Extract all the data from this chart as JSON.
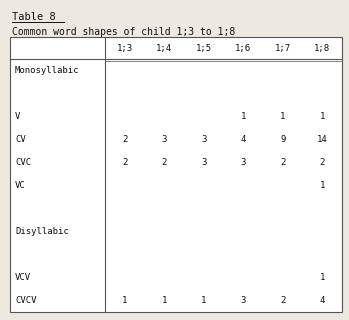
{
  "title": "Table 8",
  "subtitle": "Common word shapes of child 1;3 to 1;8",
  "columns": [
    "1;3",
    "1;4",
    "1;5",
    "1;6",
    "1;7",
    "1;8"
  ],
  "rows": [
    {
      "label": "Monosyllabic",
      "values": [
        "",
        "",
        "",
        "",
        "",
        ""
      ],
      "is_section": true
    },
    {
      "label": "",
      "values": [
        "",
        "",
        "",
        "",
        "",
        ""
      ],
      "is_section": false
    },
    {
      "label": "V",
      "values": [
        "",
        "",
        "",
        "1",
        "1",
        "1"
      ],
      "is_section": false
    },
    {
      "label": "CV",
      "values": [
        "2",
        "3",
        "3",
        "4",
        "9",
        "14"
      ],
      "is_section": false
    },
    {
      "label": "CVC",
      "values": [
        "2",
        "2",
        "3",
        "3",
        "2",
        "2"
      ],
      "is_section": false
    },
    {
      "label": "VC",
      "values": [
        "",
        "",
        "",
        "",
        "",
        "1"
      ],
      "is_section": false
    },
    {
      "label": "",
      "values": [
        "",
        "",
        "",
        "",
        "",
        ""
      ],
      "is_section": false
    },
    {
      "label": "Disyllabic",
      "values": [
        "",
        "",
        "",
        "",
        "",
        ""
      ],
      "is_section": true
    },
    {
      "label": "",
      "values": [
        "",
        "",
        "",
        "",
        "",
        ""
      ],
      "is_section": false
    },
    {
      "label": "VCV",
      "values": [
        "",
        "",
        "",
        "",
        "",
        "1"
      ],
      "is_section": false
    },
    {
      "label": "CVCV",
      "values": [
        "1",
        "1",
        "1",
        "3",
        "2",
        "4"
      ],
      "is_section": false
    }
  ],
  "bg_color": "#ede8e0",
  "table_bg": "#ffffff",
  "border_color": "#555555",
  "text_color": "#111111",
  "font_family": "monospace",
  "title_fontsize": 7.5,
  "subtitle_fontsize": 7.0,
  "cell_fontsize": 6.5,
  "header_fontsize": 6.5
}
